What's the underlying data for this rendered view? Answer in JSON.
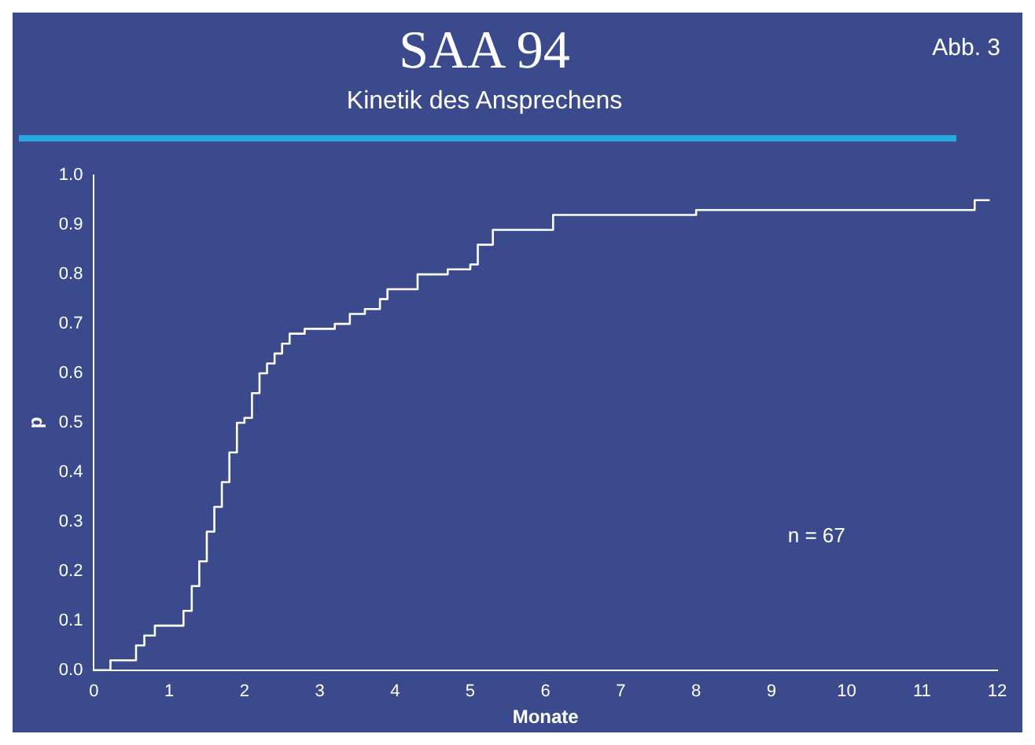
{
  "chart_data": {
    "type": "step",
    "title": "SAA 94",
    "subtitle": "Kinetik des Ansprechens",
    "xlabel": "Monate",
    "ylabel": "p",
    "annotations": [
      "Abb. 3",
      "n = 67"
    ],
    "x": [
      0,
      0.22,
      0.56,
      0.67,
      0.81,
      1.19,
      1.3,
      1.4,
      1.5,
      1.6,
      1.7,
      1.8,
      1.9,
      2.0,
      2.1,
      2.2,
      2.3,
      2.4,
      2.5,
      2.6,
      2.8,
      3.2,
      3.4,
      3.6,
      3.8,
      3.9,
      4.3,
      4.7,
      5.0,
      5.1,
      5.3,
      6.1,
      8.0,
      11.7,
      11.9
    ],
    "series": [
      {
        "color": "#ffffff",
        "values": [
          0,
          0.02,
          0.05,
          0.07,
          0.09,
          0.12,
          0.17,
          0.22,
          0.28,
          0.33,
          0.38,
          0.44,
          0.5,
          0.51,
          0.56,
          0.6,
          0.62,
          0.64,
          0.66,
          0.68,
          0.69,
          0.7,
          0.72,
          0.73,
          0.75,
          0.77,
          0.8,
          0.81,
          0.82,
          0.86,
          0.89,
          0.92,
          0.93,
          0.95,
          0.95
        ]
      }
    ],
    "xlim": [
      0,
      12
    ],
    "xticks": [
      0,
      1,
      2,
      3,
      4,
      5,
      6,
      7,
      8,
      9,
      10,
      11,
      12
    ],
    "ylim": [
      0,
      1
    ],
    "yticks": [
      {
        "value": 0,
        "label": "0.0"
      },
      {
        "value": 0.1,
        "label": "0.1"
      },
      {
        "value": 0.2,
        "label": "0.2"
      },
      {
        "value": 0.3,
        "label": "0.3"
      },
      {
        "value": 0.4,
        "label": "0.4"
      },
      {
        "value": 0.5,
        "label": "0.5"
      },
      {
        "value": 0.6,
        "label": "0.6"
      },
      {
        "value": 0.7,
        "label": "0.7"
      },
      {
        "value": 0.8,
        "label": "0.8"
      },
      {
        "value": 0.9,
        "label": "0.9"
      },
      {
        "value": 1,
        "label": "1.0"
      }
    ],
    "grid": false,
    "legend": false,
    "marker": "none",
    "line_style": "solid"
  }
}
